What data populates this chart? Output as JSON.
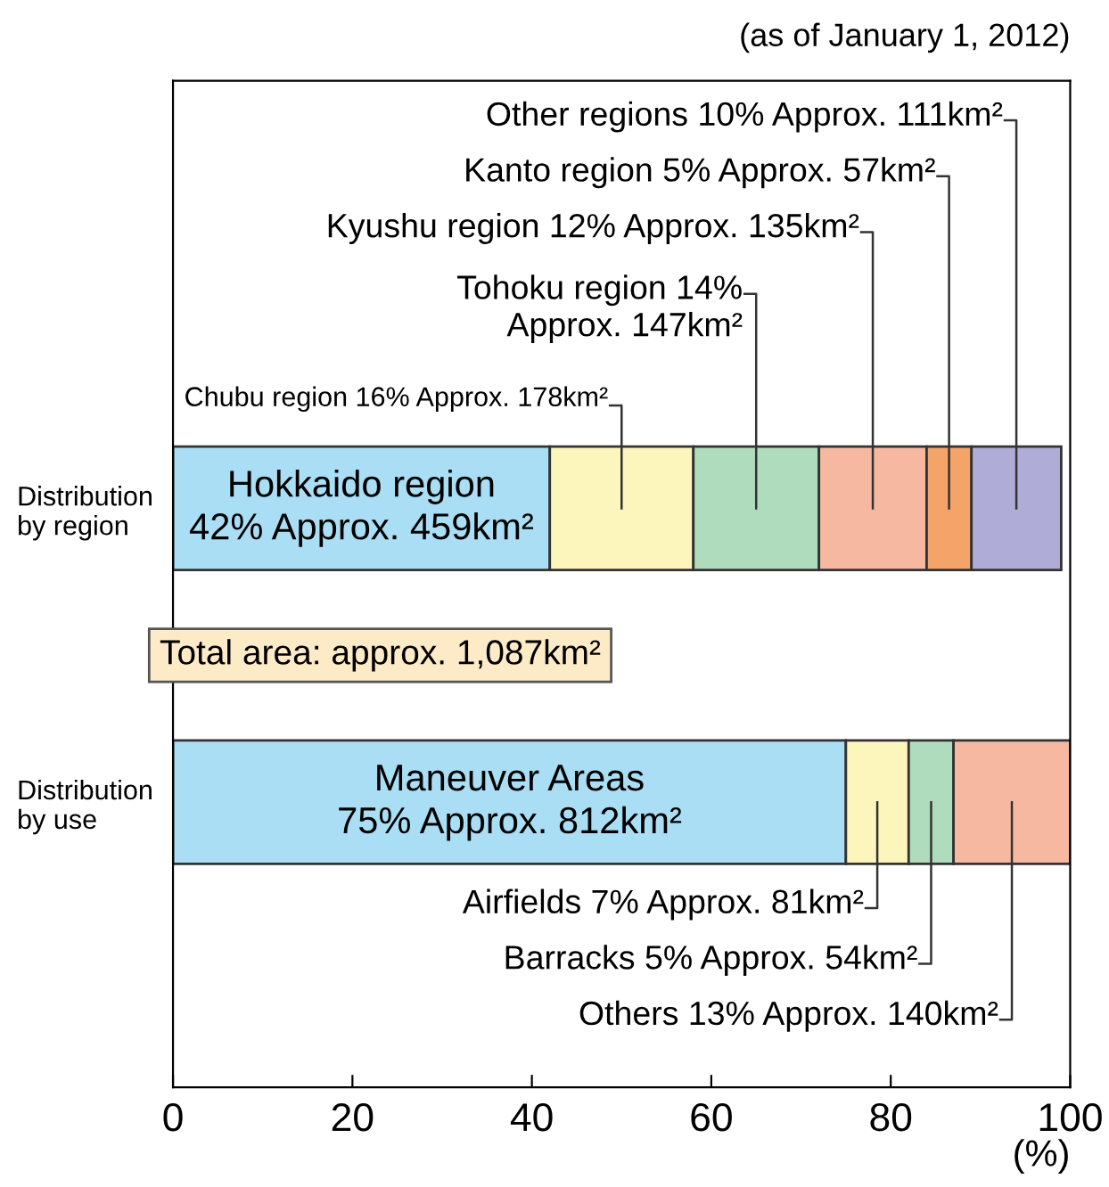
{
  "chart_data": {
    "type": "bar",
    "orientation": "horizontal",
    "stacked": true,
    "title": "(as of January 1, 2012)",
    "xlabel": "(%)",
    "categories": [
      "Distribution\nby region",
      "Distribution\nby use"
    ],
    "series": [
      {
        "color": "#a9def5",
        "values": [
          42,
          75
        ]
      },
      {
        "color": "#fcf6bc",
        "values": [
          16,
          7
        ]
      },
      {
        "color": "#b0dcbe",
        "values": [
          14,
          5
        ]
      },
      {
        "color": "#f6b8a0",
        "values": [
          12,
          13
        ]
      },
      {
        "color": "#f4a468",
        "values": [
          5,
          null
        ]
      },
      {
        "color": "#b0acd8",
        "values": [
          10,
          null
        ]
      }
    ],
    "xlim": [
      0,
      100
    ],
    "xticks": [
      0,
      20,
      40,
      60,
      80,
      100
    ],
    "grid": false,
    "legend": false,
    "annotations": [
      "Hokkaido region\n42% Approx. 459km²",
      "Chubu region 16% Approx. 178km²",
      "Tohoku region 14%\nApprox. 147km²",
      "Kyushu region 12% Approx. 135km²",
      "Kanto region 5% Approx. 57km²",
      "Other regions 10% Approx. 111km²",
      "Maneuver Areas\n75% Approx. 812km²",
      "Airfields 7% Approx. 81km²",
      "Barracks 5% Approx. 54km²",
      "Others 13% Approx. 140km²",
      "Total area: approx. 1,087km²"
    ]
  }
}
